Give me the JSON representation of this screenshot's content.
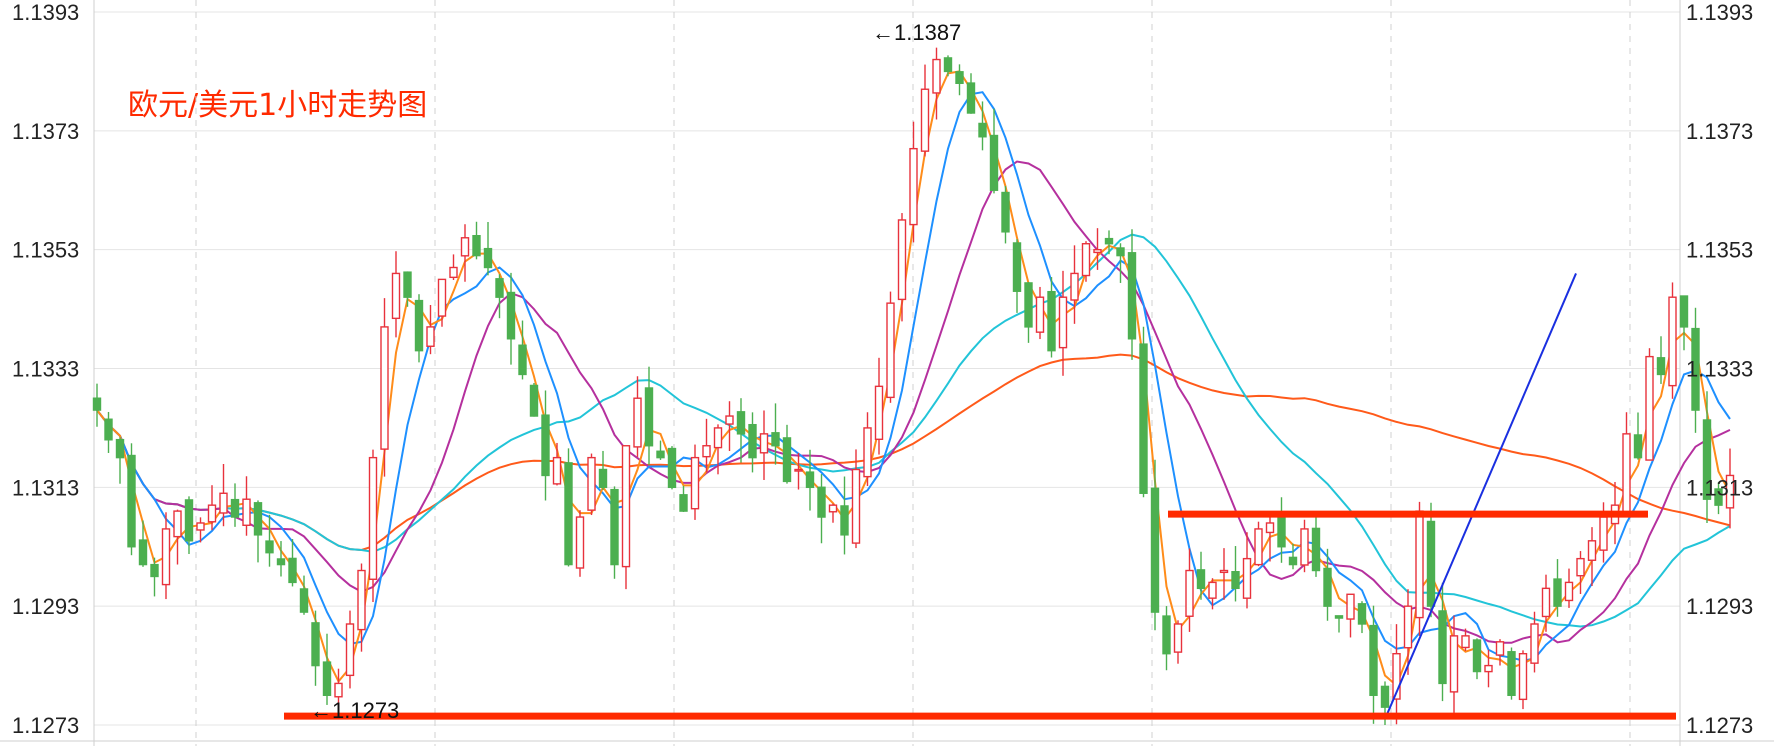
{
  "chart_data": {
    "type": "candlestick",
    "title": "欧元/美元1小时走势图",
    "y_ticks": [
      "1.1393",
      "1.1373",
      "1.1353",
      "1.1333",
      "1.1313",
      "1.1293",
      "1.1273"
    ],
    "ylim": [
      1.1273,
      1.1393
    ],
    "annotations": {
      "high": "←1.1387",
      "low": "←1.1273"
    },
    "colors": {
      "up": "#e8323c",
      "down": "#4caf50",
      "ma_orange": "#ff8c1a",
      "ma_blue": "#1e90ff",
      "ma_purple": "#b5309e",
      "ma_cyan": "#22c4d8",
      "ma_dark_orange": "#ff5a1a",
      "trendline": "#1a2fe0",
      "level": "#ff2a00"
    },
    "closes": [
      1.1326,
      1.1321,
      1.1318,
      1.1303,
      1.13,
      1.1298,
      1.1306,
      1.1309,
      1.1304,
      1.1307,
      1.131,
      1.1312,
      1.1308,
      1.1311,
      1.1305,
      1.1302,
      1.13,
      1.1297,
      1.1292,
      1.1283,
      1.1278,
      1.128,
      1.129,
      1.1299,
      1.1318,
      1.134,
      1.1349,
      1.1345,
      1.1336,
      1.134,
      1.1348,
      1.135,
      1.1355,
      1.1352,
      1.135,
      1.1345,
      1.1338,
      1.1332,
      1.1325,
      1.1315,
      1.1318,
      1.13,
      1.1308,
      1.1318,
      1.1313,
      1.13,
      1.132,
      1.1328,
      1.132,
      1.1318,
      1.1313,
      1.1309,
      1.1318,
      1.132,
      1.1323,
      1.1325,
      1.1322,
      1.1318,
      1.1322,
      1.132,
      1.1314,
      1.1316,
      1.1313,
      1.1308,
      1.131,
      1.1305,
      1.1316,
      1.1323,
      1.133,
      1.1344,
      1.1358,
      1.137,
      1.138,
      1.1385,
      1.1383,
      1.1381,
      1.1376,
      1.1372,
      1.1363,
      1.1356,
      1.1346,
      1.134,
      1.1345,
      1.1336,
      1.1345,
      1.1349,
      1.1354,
      1.1353,
      1.1354,
      1.1352,
      1.1338,
      1.1312,
      1.1292,
      1.1285,
      1.129,
      1.1299,
      1.1296,
      1.1297,
      1.1299,
      1.1296,
      1.1301,
      1.1306,
      1.1307,
      1.1303,
      1.13,
      1.1306,
      1.1299,
      1.1293,
      1.1291,
      1.1295,
      1.129,
      1.1278,
      1.1276,
      1.1285,
      1.1293,
      1.1309,
      1.1293,
      1.128,
      1.1288,
      1.1288,
      1.1282,
      1.1283,
      1.1287,
      1.1278,
      1.1285,
      1.129,
      1.1296,
      1.1293,
      1.1297,
      1.1301,
      1.1304,
      1.1308,
      1.131,
      1.1322,
      1.1318,
      1.1335,
      1.1332,
      1.1345,
      1.134,
      1.1326,
      1.1311,
      1.131,
      1.1315
    ]
  }
}
